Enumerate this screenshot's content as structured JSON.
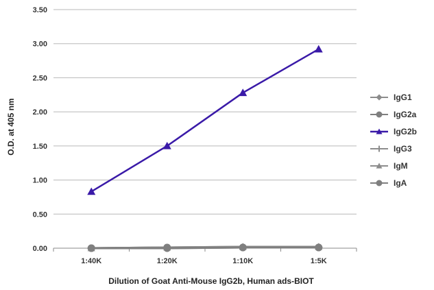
{
  "chart_data": {
    "type": "line",
    "title": "",
    "xlabel": "Dilution of Goat Anti-Mouse IgG2b, Human ads-BIOT",
    "ylabel": "O.D. at 405 nm",
    "categories": [
      "1:40K",
      "1:20K",
      "1:10K",
      "1:5K"
    ],
    "ylim": [
      0,
      3.5
    ],
    "yticks": [
      "0.00",
      "0.50",
      "1.00",
      "1.50",
      "2.00",
      "2.50",
      "3.00",
      "3.50"
    ],
    "grid": "horizontal",
    "legend_position": "right",
    "series": [
      {
        "name": "IgG1",
        "values": [
          0.0,
          0.01,
          0.02,
          0.02
        ],
        "color": "#8c8c8c",
        "marker": "diamond"
      },
      {
        "name": "IgG2a",
        "values": [
          0.0,
          0.01,
          0.01,
          0.01
        ],
        "color": "#7f7f7f",
        "marker": "circle"
      },
      {
        "name": "IgG2b",
        "values": [
          0.83,
          1.5,
          2.28,
          2.92
        ],
        "color": "#3a1aa8",
        "marker": "triangle"
      },
      {
        "name": "IgG3",
        "values": [
          0.0,
          0.0,
          0.01,
          0.01
        ],
        "color": "#8c8c8c",
        "marker": "plus"
      },
      {
        "name": "IgM",
        "values": [
          0.0,
          0.01,
          0.02,
          0.02
        ],
        "color": "#8c8c8c",
        "marker": "triangle"
      },
      {
        "name": "IgA",
        "values": [
          0.0,
          0.0,
          0.01,
          0.01
        ],
        "color": "#7f7f7f",
        "marker": "circle"
      }
    ]
  }
}
